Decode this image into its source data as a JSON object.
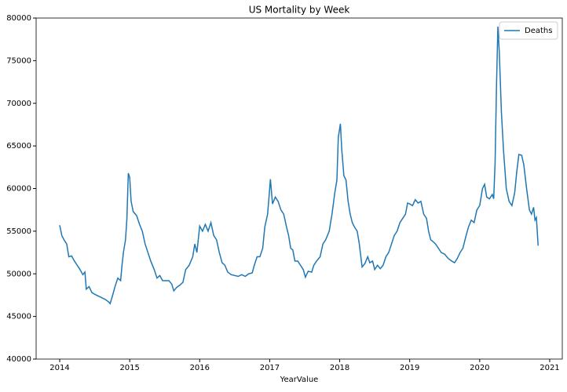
{
  "chart_data": {
    "type": "line",
    "title": "US Mortality by Week",
    "x_label": "YearValue",
    "legend": "upper right",
    "xlim": [
      2013.663,
      2021.18
    ],
    "ylim": [
      40000,
      80000
    ],
    "xticks": [
      2014,
      2015,
      2016,
      2017,
      2018,
      2019,
      2020,
      2021
    ],
    "yticks": [
      40000,
      45000,
      50000,
      55000,
      60000,
      65000,
      70000,
      75000,
      80000
    ],
    "x": [
      2014.0,
      2014.03,
      2014.06,
      2014.1,
      2014.13,
      2014.17,
      2014.21,
      2014.25,
      2014.29,
      2014.33,
      2014.36,
      2014.38,
      2014.42,
      2014.46,
      2014.5,
      2014.55,
      2014.6,
      2014.65,
      2014.7,
      2014.72,
      2014.75,
      2014.79,
      2014.83,
      2014.87,
      2014.89,
      2014.91,
      2014.94,
      2014.96,
      2014.98,
      2015.0,
      2015.02,
      2015.05,
      2015.1,
      2015.14,
      2015.18,
      2015.22,
      2015.26,
      2015.3,
      2015.35,
      2015.39,
      2015.43,
      2015.47,
      2015.51,
      2015.56,
      2015.6,
      2015.63,
      2015.67,
      2015.72,
      2015.76,
      2015.8,
      2015.85,
      2015.9,
      2015.93,
      2015.96,
      2016.0,
      2016.04,
      2016.08,
      2016.12,
      2016.16,
      2016.2,
      2016.24,
      2016.28,
      2016.32,
      2016.36,
      2016.4,
      2016.45,
      2016.5,
      2016.55,
      2016.6,
      2016.65,
      2016.7,
      2016.75,
      2016.78,
      2016.82,
      2016.86,
      2016.9,
      2016.93,
      2016.97,
      2016.99,
      2017.01,
      2017.04,
      2017.08,
      2017.12,
      2017.16,
      2017.2,
      2017.24,
      2017.27,
      2017.3,
      2017.33,
      2017.36,
      2017.4,
      2017.44,
      2017.48,
      2017.51,
      2017.55,
      2017.6,
      2017.63,
      2017.67,
      2017.72,
      2017.76,
      2017.8,
      2017.85,
      2017.89,
      2017.93,
      2017.96,
      2017.98,
      2018.01,
      2018.03,
      2018.06,
      2018.09,
      2018.12,
      2018.15,
      2018.18,
      2018.21,
      2018.25,
      2018.28,
      2018.32,
      2018.36,
      2018.4,
      2018.43,
      2018.47,
      2018.5,
      2018.54,
      2018.58,
      2018.62,
      2018.66,
      2018.7,
      2018.74,
      2018.78,
      2018.82,
      2018.86,
      2018.9,
      2018.94,
      2018.97,
      2019.0,
      2019.04,
      2019.08,
      2019.12,
      2019.16,
      2019.2,
      2019.24,
      2019.27,
      2019.3,
      2019.33,
      2019.37,
      2019.41,
      2019.45,
      2019.5,
      2019.55,
      2019.6,
      2019.64,
      2019.68,
      2019.72,
      2019.76,
      2019.8,
      2019.84,
      2019.88,
      2019.92,
      2019.96,
      2020.0,
      2020.04,
      2020.07,
      2020.1,
      2020.14,
      2020.18,
      2020.2,
      2020.22,
      2020.24,
      2020.26,
      2020.28,
      2020.31,
      2020.34,
      2020.38,
      2020.42,
      2020.46,
      2020.5,
      2020.53,
      2020.56,
      2020.6,
      2020.63,
      2020.67,
      2020.71,
      2020.74,
      2020.77,
      2020.79,
      2020.81,
      2020.835
    ],
    "series": [
      {
        "name": "Deaths",
        "color": "#1f77b4",
        "values": [
          55700,
          54500,
          54000,
          53500,
          52000,
          52100,
          51500,
          51000,
          50500,
          49900,
          50200,
          48200,
          48500,
          47800,
          47600,
          47400,
          47200,
          47000,
          46700,
          46500,
          47300,
          48500,
          49500,
          49200,
          51000,
          52500,
          54000,
          56500,
          61800,
          61300,
          58500,
          57300,
          56800,
          55800,
          55000,
          53500,
          52500,
          51500,
          50500,
          49500,
          49800,
          49200,
          49200,
          49200,
          48800,
          48000,
          48400,
          48700,
          49000,
          50500,
          51000,
          52000,
          53500,
          52500,
          55600,
          55000,
          55800,
          55000,
          56000,
          54500,
          54000,
          52500,
          51300,
          51000,
          50200,
          49900,
          49800,
          49700,
          49900,
          49700,
          50000,
          50100,
          51000,
          52000,
          52000,
          53000,
          55500,
          57000,
          59000,
          61100,
          58200,
          59000,
          58500,
          57500,
          57000,
          55500,
          54500,
          53000,
          52800,
          51500,
          51500,
          51000,
          50500,
          49600,
          50300,
          50200,
          51000,
          51500,
          52000,
          53500,
          54000,
          55000,
          57000,
          59500,
          61000,
          66000,
          67600,
          64500,
          61500,
          61000,
          58500,
          57000,
          56000,
          55500,
          55000,
          53500,
          50800,
          51200,
          52000,
          51300,
          51500,
          50500,
          51000,
          50600,
          51000,
          52000,
          52500,
          53500,
          54500,
          55000,
          56000,
          56500,
          57000,
          58300,
          58200,
          58000,
          58700,
          58300,
          58500,
          57000,
          56500,
          55000,
          54000,
          53800,
          53500,
          53000,
          52500,
          52300,
          51800,
          51500,
          51300,
          51800,
          52500,
          53000,
          54300,
          55500,
          56300,
          56000,
          57500,
          58000,
          60000,
          60500,
          59000,
          58800,
          59300,
          58800,
          63000,
          72000,
          79000,
          76000,
          69000,
          64500,
          60000,
          58500,
          58000,
          59500,
          62000,
          64000,
          63900,
          62800,
          60000,
          57500,
          57000,
          57800,
          56300,
          56600,
          53300
        ]
      }
    ]
  }
}
